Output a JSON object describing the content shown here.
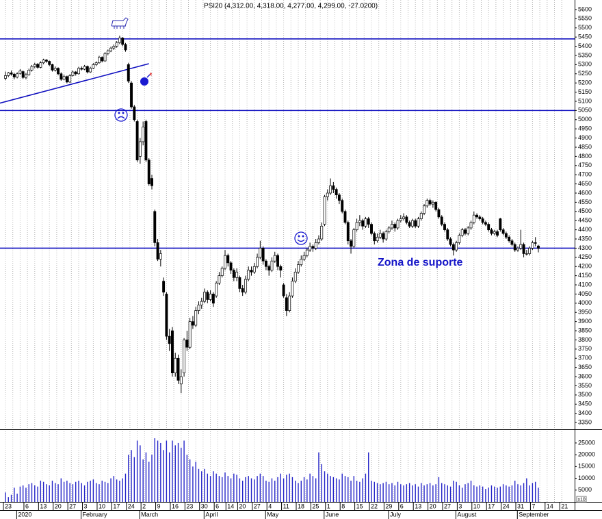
{
  "chart_data": {
    "type": "candlestick",
    "title": "PSI20 (4,312.00, 4,318.00, 4,277.00, 4,299.00, -27.0200)",
    "annotation": "Zona de suporte",
    "volume_unit": "x10",
    "categories": [
      "23",
      null,
      null,
      null,
      null,
      null,
      null,
      "6",
      null,
      null,
      null,
      null,
      "13",
      null,
      null,
      null,
      null,
      "20",
      null,
      null,
      null,
      null,
      "27",
      null,
      null,
      null,
      null,
      "3",
      null,
      null,
      null,
      null,
      "10",
      null,
      null,
      null,
      null,
      "17",
      null,
      null,
      null,
      null,
      "24",
      null,
      null,
      null,
      null,
      "2",
      null,
      null,
      null,
      null,
      "9",
      null,
      null,
      null,
      null,
      "16",
      null,
      null,
      null,
      null,
      "23",
      null,
      null,
      null,
      null,
      "30",
      null,
      null,
      null,
      null,
      "6",
      null,
      null,
      null,
      "14",
      null,
      null,
      null,
      "20",
      null,
      null,
      null,
      null,
      "27",
      null,
      null,
      null,
      null,
      "4",
      null,
      null,
      null,
      null,
      "11",
      null,
      null,
      null,
      null,
      "18",
      null,
      null,
      null,
      null,
      "25",
      null,
      null,
      null,
      null,
      "1",
      null,
      null,
      null,
      null,
      "8",
      null,
      null,
      null,
      null,
      "15",
      null,
      null,
      null,
      null,
      "22",
      null,
      null,
      null,
      null,
      "29",
      null,
      null,
      null,
      null,
      "6",
      null,
      null,
      null,
      null,
      "13",
      null,
      null,
      null,
      null,
      "20",
      null,
      null,
      null,
      null,
      "27",
      null,
      null,
      null,
      null,
      "3",
      null,
      null,
      null,
      null,
      "10",
      null,
      null,
      null,
      null,
      "17",
      null,
      null,
      null,
      null,
      "24",
      null,
      null,
      null,
      null,
      "31",
      null,
      null,
      null,
      null,
      "7",
      null,
      null,
      null,
      null,
      "14",
      null,
      null,
      null,
      null,
      "21"
    ],
    "month_labels": [
      {
        "value": 5,
        "label": "2020"
      },
      {
        "value": 27,
        "label": "February"
      },
      {
        "value": 47,
        "label": "March"
      },
      {
        "value": 69,
        "label": "April"
      },
      {
        "value": 90,
        "label": "May"
      },
      {
        "value": 110,
        "label": "June"
      },
      {
        "value": 132,
        "label": "July"
      },
      {
        "value": 155,
        "label": "August"
      },
      {
        "value": 176,
        "label": "September"
      }
    ],
    "ohlc": [
      [
        5225,
        5262,
        5215,
        5240
      ],
      [
        5240,
        5260,
        5232,
        5255
      ],
      [
        5255,
        5268,
        5240,
        5248
      ],
      [
        5248,
        5255,
        5220,
        5232
      ],
      [
        5232,
        5258,
        5225,
        5250
      ],
      [
        5252,
        5275,
        5245,
        5265
      ],
      [
        5262,
        5268,
        5222,
        5230
      ],
      [
        5230,
        5255,
        5220,
        5245
      ],
      [
        5245,
        5278,
        5240,
        5270
      ],
      [
        5270,
        5298,
        5262,
        5290
      ],
      [
        5290,
        5310,
        5280,
        5300
      ],
      [
        5302,
        5308,
        5278,
        5285
      ],
      [
        5285,
        5318,
        5280,
        5310
      ],
      [
        5310,
        5332,
        5302,
        5325
      ],
      [
        5325,
        5330,
        5310,
        5318
      ],
      [
        5318,
        5322,
        5292,
        5300
      ],
      [
        5300,
        5305,
        5262,
        5270
      ],
      [
        5270,
        5290,
        5262,
        5280
      ],
      [
        5280,
        5285,
        5242,
        5250
      ],
      [
        5250,
        5258,
        5212,
        5220
      ],
      [
        5220,
        5245,
        5215,
        5235
      ],
      [
        5235,
        5240,
        5198,
        5205
      ],
      [
        5205,
        5248,
        5200,
        5240
      ],
      [
        5240,
        5268,
        5235,
        5260
      ],
      [
        5260,
        5265,
        5240,
        5250
      ],
      [
        5250,
        5288,
        5245,
        5280
      ],
      [
        5280,
        5290,
        5268,
        5275
      ],
      [
        5275,
        5298,
        5270,
        5290
      ],
      [
        5290,
        5295,
        5252,
        5260
      ],
      [
        5260,
        5288,
        5255,
        5280
      ],
      [
        5280,
        5308,
        5275,
        5300
      ],
      [
        5300,
        5318,
        5292,
        5310
      ],
      [
        5310,
        5348,
        5305,
        5340
      ],
      [
        5340,
        5345,
        5312,
        5320
      ],
      [
        5320,
        5368,
        5315,
        5360
      ],
      [
        5360,
        5382,
        5352,
        5375
      ],
      [
        5375,
        5398,
        5368,
        5390
      ],
      [
        5390,
        5410,
        5380,
        5400
      ],
      [
        5400,
        5428,
        5392,
        5420
      ],
      [
        5420,
        5458,
        5412,
        5445
      ],
      [
        5445,
        5450,
        5400,
        5410
      ],
      [
        5410,
        5418,
        5370,
        5380
      ],
      [
        5300,
        5310,
        5200,
        5210
      ],
      [
        5200,
        5210,
        5060,
        5070
      ],
      [
        5070,
        5080,
        4990,
        5000
      ],
      [
        4990,
        5000,
        4770,
        4780
      ],
      [
        4800,
        4900,
        4760,
        4880
      ],
      [
        4880,
        4990,
        4860,
        4960
      ],
      [
        4990,
        5000,
        4770,
        4780
      ],
      [
        4780,
        4790,
        4640,
        4650
      ],
      [
        4680,
        4700,
        4620,
        4640
      ],
      [
        4500,
        4510,
        4310,
        4330
      ],
      [
        4330,
        4350,
        4230,
        4240
      ],
      [
        4240,
        4290,
        4200,
        4270
      ],
      [
        4120,
        4140,
        4040,
        4060
      ],
      [
        4050,
        4060,
        3800,
        3820
      ],
      [
        3820,
        3860,
        3740,
        3780
      ],
      [
        3850,
        3870,
        3600,
        3620
      ],
      [
        3620,
        3730,
        3600,
        3700
      ],
      [
        3700,
        3720,
        3560,
        3580
      ],
      [
        3560,
        3640,
        3510,
        3600
      ],
      [
        3620,
        3810,
        3600,
        3800
      ],
      [
        3800,
        3850,
        3740,
        3760
      ],
      [
        3760,
        3920,
        3750,
        3900
      ],
      [
        3900,
        3930,
        3860,
        3880
      ],
      [
        3880,
        3980,
        3870,
        3960
      ],
      [
        3960,
        4010,
        3940,
        3990
      ],
      [
        3990,
        4030,
        3970,
        4010
      ],
      [
        4010,
        4080,
        4000,
        4060
      ],
      [
        4060,
        4070,
        4000,
        4020
      ],
      [
        4020,
        4070,
        4010,
        4050
      ],
      [
        4050,
        4060,
        3980,
        4000
      ],
      [
        4040,
        4120,
        4030,
        4110
      ],
      [
        4110,
        4170,
        4100,
        4150
      ],
      [
        4150,
        4200,
        4140,
        4190
      ],
      [
        4190,
        4290,
        4180,
        4260
      ],
      [
        4260,
        4270,
        4200,
        4220
      ],
      [
        4220,
        4230,
        4160,
        4180
      ],
      [
        4180,
        4190,
        4120,
        4140
      ],
      [
        4140,
        4190,
        4120,
        4170
      ],
      [
        4140,
        4150,
        4060,
        4080
      ],
      [
        4080,
        4100,
        4040,
        4060
      ],
      [
        4060,
        4150,
        4050,
        4130
      ],
      [
        4130,
        4200,
        4120,
        4180
      ],
      [
        4180,
        4200,
        4150,
        4170
      ],
      [
        4170,
        4220,
        4160,
        4200
      ],
      [
        4200,
        4270,
        4190,
        4250
      ],
      [
        4250,
        4340,
        4240,
        4300
      ],
      [
        4300,
        4310,
        4210,
        4230
      ],
      [
        4230,
        4240,
        4180,
        4200
      ],
      [
        4200,
        4210,
        4150,
        4180
      ],
      [
        4180,
        4250,
        4170,
        4230
      ],
      [
        4230,
        4280,
        4220,
        4260
      ],
      [
        4260,
        4270,
        4180,
        4200
      ],
      [
        4200,
        4210,
        4140,
        4180
      ],
      [
        4100,
        4110,
        4030,
        4040
      ],
      [
        4030,
        4050,
        3930,
        3960
      ],
      [
        3960,
        4060,
        3950,
        4040
      ],
      [
        4040,
        4140,
        4030,
        4120
      ],
      [
        4120,
        4190,
        4110,
        4170
      ],
      [
        4170,
        4230,
        4160,
        4210
      ],
      [
        4210,
        4260,
        4200,
        4240
      ],
      [
        4240,
        4280,
        4230,
        4260
      ],
      [
        4260,
        4300,
        4250,
        4290
      ],
      [
        4290,
        4330,
        4280,
        4310
      ],
      [
        4310,
        4320,
        4280,
        4300
      ],
      [
        4300,
        4350,
        4290,
        4330
      ],
      [
        4330,
        4370,
        4320,
        4350
      ],
      [
        4350,
        4440,
        4340,
        4420
      ],
      [
        4430,
        4590,
        4420,
        4580
      ],
      [
        4580,
        4620,
        4560,
        4600
      ],
      [
        4600,
        4680,
        4590,
        4640
      ],
      [
        4640,
        4660,
        4600,
        4620
      ],
      [
        4620,
        4630,
        4570,
        4590
      ],
      [
        4590,
        4600,
        4540,
        4560
      ],
      [
        4560,
        4570,
        4490,
        4500
      ],
      [
        4500,
        4510,
        4430,
        4440
      ],
      [
        4440,
        4450,
        4320,
        4340
      ],
      [
        4340,
        4350,
        4270,
        4310
      ],
      [
        4310,
        4410,
        4300,
        4400
      ],
      [
        4400,
        4460,
        4390,
        4440
      ],
      [
        4440,
        4480,
        4420,
        4450
      ],
      [
        4450,
        4460,
        4400,
        4420
      ],
      [
        4420,
        4470,
        4410,
        4460
      ],
      [
        4460,
        4470,
        4410,
        4430
      ],
      [
        4430,
        4440,
        4370,
        4380
      ],
      [
        4380,
        4390,
        4320,
        4340
      ],
      [
        4340,
        4380,
        4330,
        4360
      ],
      [
        4360,
        4400,
        4350,
        4380
      ],
      [
        4380,
        4390,
        4330,
        4350
      ],
      [
        4350,
        4400,
        4340,
        4390
      ],
      [
        4390,
        4420,
        4380,
        4410
      ],
      [
        4410,
        4450,
        4400,
        4430
      ],
      [
        4430,
        4440,
        4390,
        4410
      ],
      [
        4410,
        4460,
        4400,
        4450
      ],
      [
        4450,
        4480,
        4440,
        4460
      ],
      [
        4460,
        4490,
        4450,
        4470
      ],
      [
        4470,
        4480,
        4430,
        4440
      ],
      [
        4440,
        4450,
        4410,
        4420
      ],
      [
        4420,
        4460,
        4410,
        4450
      ],
      [
        4450,
        4460,
        4410,
        4420
      ],
      [
        4420,
        4470,
        4410,
        4460
      ],
      [
        4460,
        4500,
        4450,
        4490
      ],
      [
        4490,
        4540,
        4480,
        4530
      ],
      [
        4530,
        4570,
        4520,
        4560
      ],
      [
        4560,
        4570,
        4530,
        4540
      ],
      [
        4540,
        4560,
        4520,
        4550
      ],
      [
        4550,
        4555,
        4500,
        4510
      ],
      [
        4510,
        4520,
        4460,
        4470
      ],
      [
        4470,
        4480,
        4420,
        4430
      ],
      [
        4430,
        4440,
        4390,
        4400
      ],
      [
        4400,
        4410,
        4340,
        4350
      ],
      [
        4350,
        4360,
        4310,
        4320
      ],
      [
        4320,
        4330,
        4260,
        4290
      ],
      [
        4290,
        4340,
        4280,
        4330
      ],
      [
        4330,
        4380,
        4320,
        4370
      ],
      [
        4370,
        4410,
        4360,
        4400
      ],
      [
        4400,
        4410,
        4370,
        4380
      ],
      [
        4380,
        4420,
        4370,
        4410
      ],
      [
        4410,
        4450,
        4400,
        4440
      ],
      [
        4440,
        4500,
        4430,
        4480
      ],
      [
        4480,
        4490,
        4460,
        4470
      ],
      [
        4470,
        4480,
        4450,
        4460
      ],
      [
        4460,
        4470,
        4430,
        4440
      ],
      [
        4440,
        4450,
        4420,
        4430
      ],
      [
        4430,
        4440,
        4390,
        4400
      ],
      [
        4400,
        4410,
        4370,
        4380
      ],
      [
        4380,
        4400,
        4370,
        4390
      ],
      [
        4390,
        4400,
        4360,
        4370
      ],
      [
        4460,
        4465,
        4390,
        4400
      ],
      [
        4400,
        4410,
        4370,
        4380
      ],
      [
        4380,
        4390,
        4350,
        4360
      ],
      [
        4360,
        4370,
        4330,
        4340
      ],
      [
        4340,
        4350,
        4310,
        4320
      ],
      [
        4320,
        4330,
        4280,
        4290
      ],
      [
        4290,
        4310,
        4280,
        4300
      ],
      [
        4300,
        4400,
        4290,
        4320
      ],
      [
        4320,
        4330,
        4250,
        4270
      ],
      [
        4270,
        4290,
        4260,
        4270
      ],
      [
        4270,
        4310,
        4260,
        4300
      ],
      [
        4300,
        4340,
        4290,
        4330
      ],
      [
        4330,
        4360,
        4310,
        4326.02
      ],
      [
        4312,
        4318,
        4277,
        4299
      ],
      null,
      null,
      null,
      null,
      null,
      null,
      null,
      null
    ],
    "volumes": [
      4000,
      2000,
      3000,
      6000,
      3500,
      6500,
      7000,
      6000,
      7500,
      8000,
      7000,
      6500,
      9000,
      8500,
      7500,
      7000,
      9000,
      8000,
      7500,
      10000,
      8500,
      9000,
      8000,
      7500,
      8500,
      9000,
      8000,
      7000,
      8500,
      9000,
      9500,
      8000,
      7500,
      9000,
      8500,
      8000,
      10000,
      11000,
      9500,
      9000,
      10000,
      12000,
      20000,
      22000,
      19000,
      26000,
      24000,
      18000,
      21000,
      17000,
      20000,
      27000,
      26000,
      25000,
      22000,
      26000,
      21000,
      26000,
      24000,
      25000,
      23000,
      26000,
      20000,
      18000,
      15000,
      17000,
      14000,
      13000,
      14000,
      12000,
      11000,
      13000,
      12000,
      11000,
      10500,
      12500,
      11000,
      10000,
      12000,
      11500,
      10000,
      9000,
      10500,
      11000,
      10000,
      9500,
      11000,
      12000,
      11000,
      9000,
      8500,
      10000,
      9000,
      10500,
      12000,
      10000,
      11500,
      12000,
      10500,
      9000,
      8000,
      9000,
      10500,
      9500,
      12000,
      11000,
      10000,
      21000,
      16000,
      13000,
      12000,
      11000,
      10500,
      10000,
      9500,
      12000,
      11000,
      10500,
      9000,
      11000,
      9000,
      8500,
      10000,
      12000,
      21000,
      9000,
      8500,
      8000,
      7500,
      8000,
      8500,
      7500,
      8000,
      7000,
      8500,
      7500,
      7000,
      7500,
      8000,
      7000,
      7500,
      6500,
      8000,
      7000,
      7500,
      8000,
      7000,
      7500,
      10500,
      8000,
      7500,
      7000,
      6500,
      9000,
      8500,
      7000,
      6000,
      7500,
      8000,
      9000,
      7000,
      6500,
      7000,
      6500,
      5500,
      6000,
      7000,
      6500,
      6000,
      6500,
      7500,
      7000,
      6500,
      7000,
      9000,
      7500,
      7000,
      8000,
      10000,
      7000,
      8000,
      8500,
      6000,
      null,
      null,
      null,
      null,
      null,
      null,
      null,
      null
    ],
    "up_color": "#ffffff",
    "down_color": "#000000",
    "volume_color": "#2424c8",
    "line_color": "#1010c0",
    "ylim": [
      3313,
      5652
    ],
    "yticks": [
      5600,
      5550,
      5500,
      5450,
      5400,
      5350,
      5300,
      5250,
      5200,
      5150,
      5100,
      5050,
      5000,
      4950,
      4900,
      4850,
      4800,
      4750,
      4700,
      4650,
      4600,
      4550,
      4500,
      4450,
      4400,
      4350,
      4300,
      4250,
      4200,
      4150,
      4100,
      4050,
      4000,
      3950,
      3900,
      3850,
      3800,
      3750,
      3700,
      3650,
      3600,
      3550,
      3500,
      3450,
      3400,
      3350
    ],
    "volume_ylim": [
      0,
      30500
    ],
    "volume_yticks": [
      25000,
      20000,
      15000,
      10000,
      5000
    ],
    "hlines": [
      5440,
      5050,
      4300
    ],
    "trendline": {
      "x": [
        -1.9,
        49
      ],
      "values": [
        5090,
        5305
      ]
    },
    "grid": true
  }
}
